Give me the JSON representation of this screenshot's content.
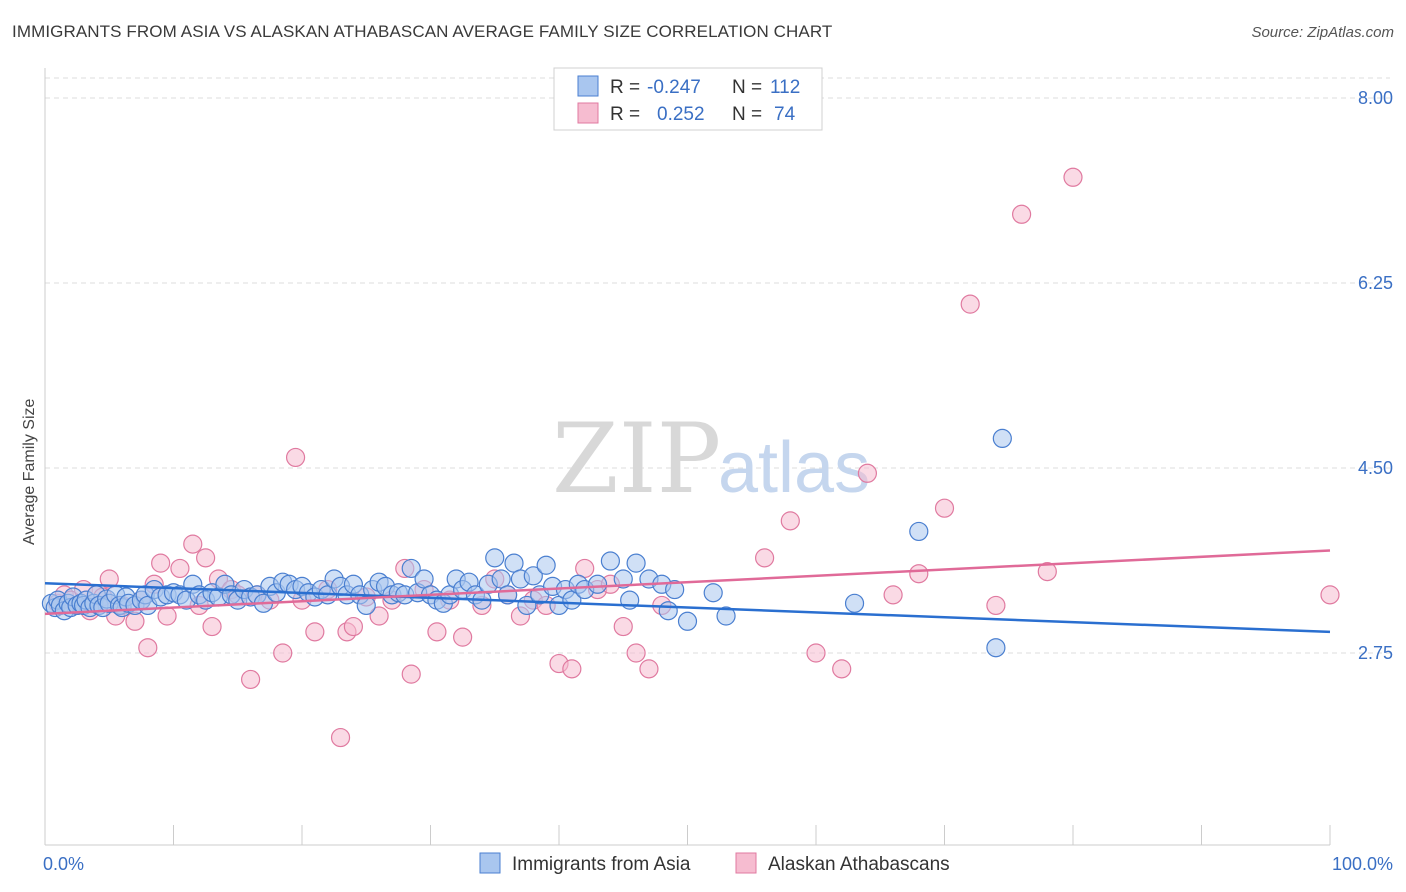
{
  "title": "IMMIGRANTS FROM ASIA VS ALASKAN ATHABASCAN AVERAGE FAMILY SIZE CORRELATION CHART",
  "source": "Source: ZipAtlas.com",
  "watermark": {
    "zip": "ZIP",
    "atlas": "atlas"
  },
  "colors": {
    "blue_fill": "#a9c6ef",
    "blue_stroke": "#4a7fd0",
    "blue_line": "#2a6fd0",
    "pink_fill": "#f6bcd0",
    "pink_stroke": "#e07aa0",
    "pink_line": "#e06a98",
    "grid": "#dddddd",
    "value_text": "#3a6fc4"
  },
  "legend": {
    "rows": [
      {
        "r_label": "R =",
        "r_value": "-0.247",
        "n_label": "N =",
        "n_value": "112"
      },
      {
        "r_label": "R =",
        "r_value": "0.252",
        "n_label": "N =",
        "n_value": "74"
      }
    ]
  },
  "chart_data": {
    "type": "scatter",
    "title": "IMMIGRANTS FROM ASIA VS ALASKAN ATHABASCAN AVERAGE FAMILY SIZE CORRELATION CHART",
    "xlabel": "",
    "ylabel": "Average Family Size",
    "xlim": [
      0,
      100
    ],
    "ylim": [
      1.6,
      8.2
    ],
    "y_ticks": [
      2.75,
      4.5,
      6.25,
      8.0
    ],
    "y_tick_labels": [
      "2.75",
      "4.50",
      "6.25",
      "8.00"
    ],
    "x_tick_labels": [
      "0.0%",
      "100.0%"
    ],
    "grid": true,
    "legend_position": "bottom",
    "series": [
      {
        "name": "Immigrants from Asia",
        "color": "#a9c6ef",
        "trend": {
          "x": [
            0,
            100
          ],
          "y": [
            3.41,
            2.95
          ]
        },
        "points": [
          [
            0.5,
            3.22
          ],
          [
            0.8,
            3.18
          ],
          [
            1.0,
            3.25
          ],
          [
            1.2,
            3.2
          ],
          [
            1.5,
            3.15
          ],
          [
            1.8,
            3.22
          ],
          [
            2.0,
            3.18
          ],
          [
            2.2,
            3.28
          ],
          [
            2.5,
            3.2
          ],
          [
            2.8,
            3.22
          ],
          [
            3.0,
            3.2
          ],
          [
            3.2,
            3.25
          ],
          [
            3.5,
            3.18
          ],
          [
            3.8,
            3.22
          ],
          [
            4.0,
            3.3
          ],
          [
            4.2,
            3.2
          ],
          [
            4.5,
            3.18
          ],
          [
            4.8,
            3.26
          ],
          [
            5.0,
            3.22
          ],
          [
            5.5,
            3.3
          ],
          [
            5.8,
            3.2
          ],
          [
            6.0,
            3.18
          ],
          [
            6.3,
            3.28
          ],
          [
            6.5,
            3.22
          ],
          [
            7.0,
            3.2
          ],
          [
            7.5,
            3.25
          ],
          [
            7.8,
            3.3
          ],
          [
            8.0,
            3.2
          ],
          [
            8.5,
            3.35
          ],
          [
            9.0,
            3.28
          ],
          [
            9.5,
            3.3
          ],
          [
            10.0,
            3.32
          ],
          [
            10.5,
            3.3
          ],
          [
            11.0,
            3.25
          ],
          [
            11.5,
            3.4
          ],
          [
            12.0,
            3.3
          ],
          [
            12.5,
            3.25
          ],
          [
            13.0,
            3.32
          ],
          [
            13.5,
            3.28
          ],
          [
            14.0,
            3.4
          ],
          [
            14.5,
            3.3
          ],
          [
            15.0,
            3.25
          ],
          [
            15.5,
            3.35
          ],
          [
            16.0,
            3.28
          ],
          [
            16.5,
            3.3
          ],
          [
            17.0,
            3.22
          ],
          [
            17.5,
            3.38
          ],
          [
            18.0,
            3.32
          ],
          [
            18.5,
            3.42
          ],
          [
            19.0,
            3.4
          ],
          [
            19.5,
            3.35
          ],
          [
            20.0,
            3.38
          ],
          [
            20.5,
            3.32
          ],
          [
            21.0,
            3.28
          ],
          [
            21.5,
            3.35
          ],
          [
            22.0,
            3.3
          ],
          [
            22.5,
            3.45
          ],
          [
            23.0,
            3.38
          ],
          [
            23.5,
            3.3
          ],
          [
            24.0,
            3.4
          ],
          [
            24.5,
            3.3
          ],
          [
            25.0,
            3.2
          ],
          [
            25.5,
            3.35
          ],
          [
            26.0,
            3.42
          ],
          [
            26.5,
            3.38
          ],
          [
            27.0,
            3.3
          ],
          [
            27.5,
            3.32
          ],
          [
            28.0,
            3.3
          ],
          [
            28.5,
            3.55
          ],
          [
            29.0,
            3.32
          ],
          [
            29.5,
            3.45
          ],
          [
            30.0,
            3.3
          ],
          [
            30.5,
            3.25
          ],
          [
            31.0,
            3.22
          ],
          [
            31.5,
            3.3
          ],
          [
            32.0,
            3.45
          ],
          [
            32.5,
            3.35
          ],
          [
            33.0,
            3.42
          ],
          [
            33.5,
            3.3
          ],
          [
            34.0,
            3.25
          ],
          [
            34.5,
            3.4
          ],
          [
            35.0,
            3.65
          ],
          [
            35.5,
            3.45
          ],
          [
            36.0,
            3.3
          ],
          [
            36.5,
            3.6
          ],
          [
            37.0,
            3.45
          ],
          [
            37.5,
            3.2
          ],
          [
            38.0,
            3.48
          ],
          [
            38.5,
            3.3
          ],
          [
            39.0,
            3.58
          ],
          [
            39.5,
            3.38
          ],
          [
            40.0,
            3.2
          ],
          [
            40.5,
            3.35
          ],
          [
            41.0,
            3.25
          ],
          [
            41.5,
            3.4
          ],
          [
            42.0,
            3.35
          ],
          [
            43.0,
            3.4
          ],
          [
            44.0,
            3.62
          ],
          [
            45.0,
            3.45
          ],
          [
            45.5,
            3.25
          ],
          [
            46.0,
            3.6
          ],
          [
            47.0,
            3.45
          ],
          [
            48.0,
            3.4
          ],
          [
            48.5,
            3.15
          ],
          [
            49.0,
            3.35
          ],
          [
            50.0,
            3.05
          ],
          [
            53.0,
            3.1
          ],
          [
            52.0,
            3.32
          ],
          [
            63.0,
            3.22
          ],
          [
            74.0,
            2.8
          ],
          [
            68.0,
            3.9
          ],
          [
            74.5,
            4.78
          ]
        ]
      },
      {
        "name": "Alaskan Athabascans",
        "color": "#f6bcd0",
        "trend": {
          "x": [
            0,
            100
          ],
          "y": [
            3.12,
            3.72
          ]
        },
        "points": [
          [
            1.0,
            3.22
          ],
          [
            1.5,
            3.3
          ],
          [
            2.0,
            3.25
          ],
          [
            2.5,
            3.2
          ],
          [
            3.0,
            3.35
          ],
          [
            3.5,
            3.15
          ],
          [
            4.0,
            3.3
          ],
          [
            4.5,
            3.28
          ],
          [
            5.0,
            3.45
          ],
          [
            5.5,
            3.1
          ],
          [
            6.0,
            3.2
          ],
          [
            7.0,
            3.05
          ],
          [
            7.5,
            3.25
          ],
          [
            8.0,
            2.8
          ],
          [
            8.5,
            3.4
          ],
          [
            9.0,
            3.6
          ],
          [
            9.5,
            3.1
          ],
          [
            10.5,
            3.55
          ],
          [
            11.5,
            3.78
          ],
          [
            12.0,
            3.2
          ],
          [
            12.5,
            3.65
          ],
          [
            13.0,
            3.0
          ],
          [
            13.5,
            3.45
          ],
          [
            14.5,
            3.35
          ],
          [
            15.0,
            3.3
          ],
          [
            16.0,
            2.5
          ],
          [
            16.5,
            3.3
          ],
          [
            17.5,
            3.25
          ],
          [
            18.5,
            2.75
          ],
          [
            19.5,
            4.6
          ],
          [
            20.0,
            3.25
          ],
          [
            21.0,
            2.95
          ],
          [
            22.0,
            3.35
          ],
          [
            23.0,
            1.95
          ],
          [
            23.5,
            2.95
          ],
          [
            24.0,
            3.0
          ],
          [
            25.0,
            3.28
          ],
          [
            26.0,
            3.1
          ],
          [
            27.0,
            3.25
          ],
          [
            28.0,
            3.55
          ],
          [
            28.5,
            2.55
          ],
          [
            29.5,
            3.35
          ],
          [
            30.5,
            2.95
          ],
          [
            31.5,
            3.25
          ],
          [
            32.5,
            2.9
          ],
          [
            34.0,
            3.2
          ],
          [
            35.0,
            3.45
          ],
          [
            36.0,
            3.3
          ],
          [
            37.0,
            3.1
          ],
          [
            38.0,
            3.25
          ],
          [
            39.0,
            3.2
          ],
          [
            40.0,
            2.65
          ],
          [
            41.0,
            2.6
          ],
          [
            42.0,
            3.55
          ],
          [
            43.0,
            3.35
          ],
          [
            44.0,
            3.4
          ],
          [
            45.0,
            3.0
          ],
          [
            46.0,
            2.75
          ],
          [
            47.0,
            2.6
          ],
          [
            48.0,
            3.2
          ],
          [
            56.0,
            3.65
          ],
          [
            58.0,
            4.0
          ],
          [
            60.0,
            2.75
          ],
          [
            62.0,
            2.6
          ],
          [
            64.0,
            4.45
          ],
          [
            66.0,
            3.3
          ],
          [
            68.0,
            3.5
          ],
          [
            70.0,
            4.12
          ],
          [
            72.0,
            6.05
          ],
          [
            74.0,
            3.2
          ],
          [
            76.0,
            6.9
          ],
          [
            78.0,
            3.52
          ],
          [
            80.0,
            7.25
          ],
          [
            100.0,
            3.3
          ]
        ]
      }
    ]
  }
}
